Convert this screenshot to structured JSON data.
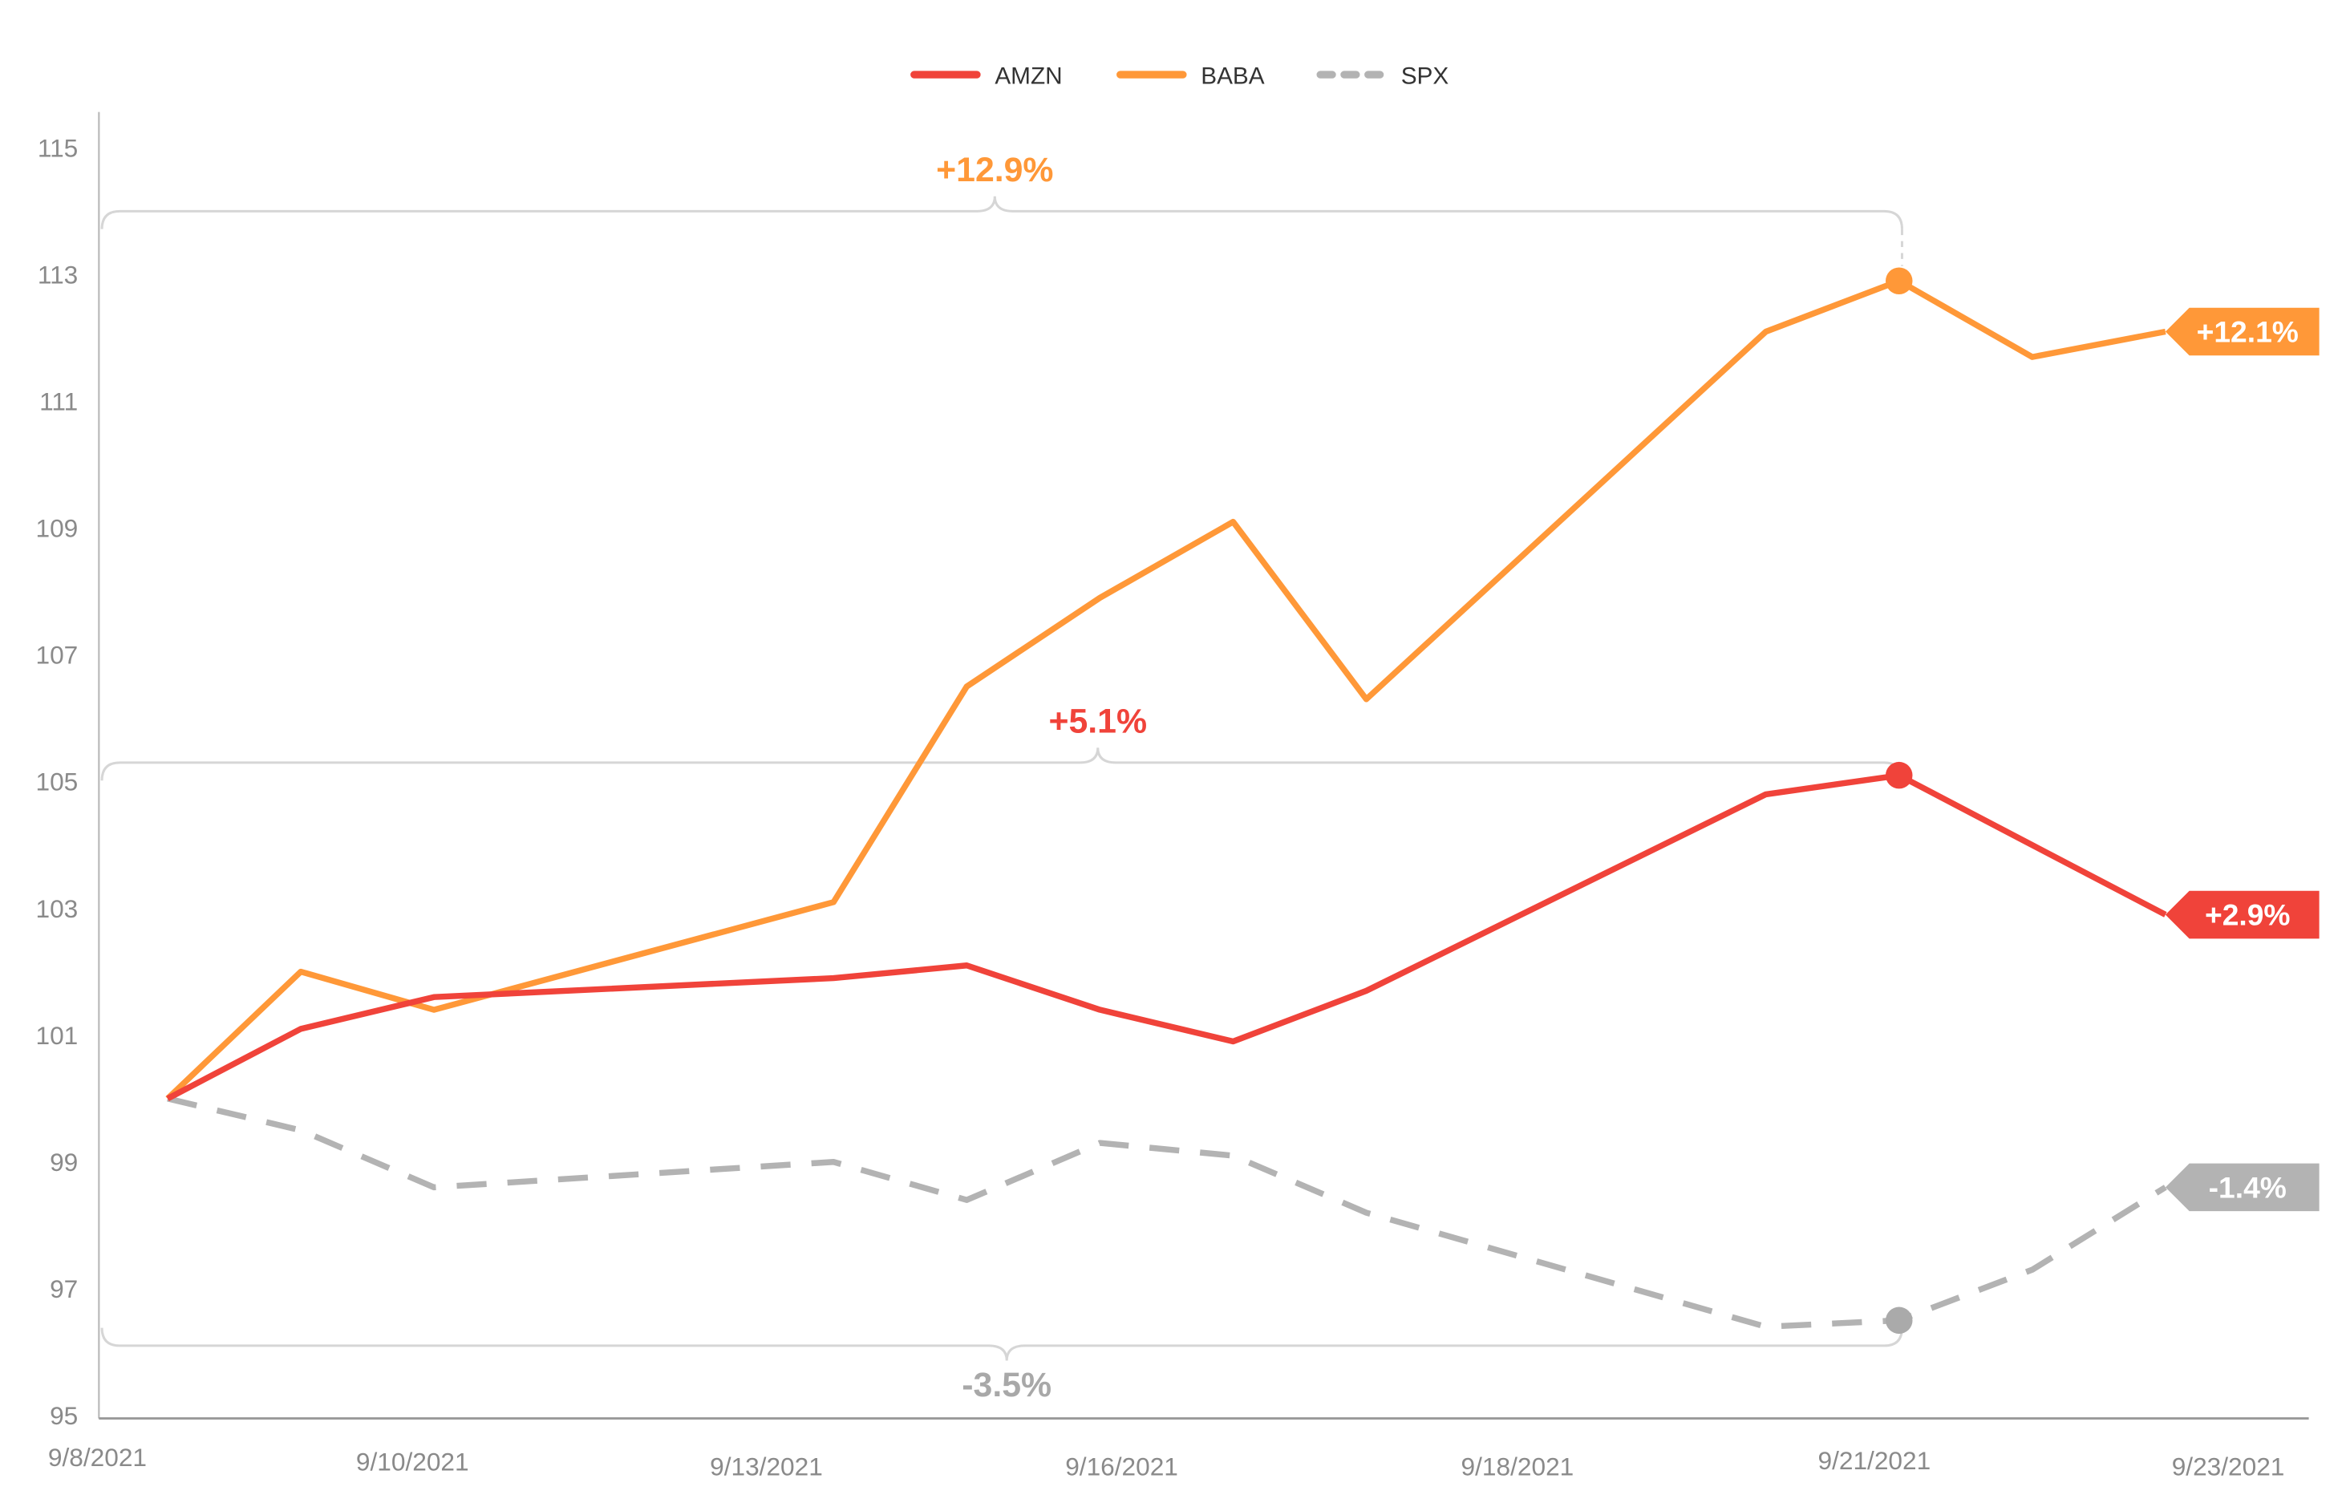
{
  "chart_data": {
    "type": "line",
    "title": "",
    "xlabel": "",
    "ylabel": "",
    "ylim": [
      95,
      115
    ],
    "yticks": [
      95,
      97,
      99,
      101,
      103,
      105,
      107,
      109,
      111,
      113,
      115
    ],
    "xtick_labels": [
      "9/8/2021",
      "9/10/2021",
      "9/13/2021",
      "9/16/2021",
      "9/18/2021",
      "9/21/2021",
      "9/23/2021"
    ],
    "x": [
      "9/8/2021",
      "9/9/2021",
      "9/10/2021",
      "9/13/2021",
      "9/14/2021",
      "9/15/2021",
      "9/16/2021",
      "9/17/2021",
      "9/20/2021",
      "9/21/2021",
      "9/22/2021",
      "9/23/2021"
    ],
    "x_day": [
      8,
      9,
      10,
      13,
      14,
      15,
      16,
      17,
      20,
      21,
      22,
      23
    ],
    "grid": false,
    "legend_position": "top-center",
    "series": [
      {
        "name": "AMZN",
        "color": "#f0433a",
        "style": "solid",
        "values": [
          100,
          101.1,
          101.6,
          101.9,
          102.1,
          101.4,
          100.9,
          101.7,
          104.8,
          105.1,
          104.0,
          102.9
        ],
        "peak_index": 9,
        "peak_label": "+5.1%",
        "end_label": "+2.9%",
        "bracket_level": 105.3
      },
      {
        "name": "BABA",
        "color": "#ff9838",
        "style": "solid",
        "values": [
          100,
          102.0,
          101.4,
          103.1,
          106.5,
          107.9,
          109.1,
          106.3,
          112.1,
          112.9,
          111.7,
          112.1
        ],
        "peak_index": 9,
        "peak_label": "+12.9%",
        "end_label": "+12.1%",
        "bracket_level": 114.0
      },
      {
        "name": "SPX",
        "color": "#b3b3b3",
        "style": "dashed",
        "values": [
          100,
          99.5,
          98.6,
          99.0,
          98.4,
          99.3,
          99.1,
          98.2,
          96.4,
          96.5,
          97.3,
          98.6
        ],
        "peak_index": 9,
        "peak_label": "-3.5%",
        "end_label": "-1.4%",
        "bracket_level": 96.1
      }
    ]
  }
}
